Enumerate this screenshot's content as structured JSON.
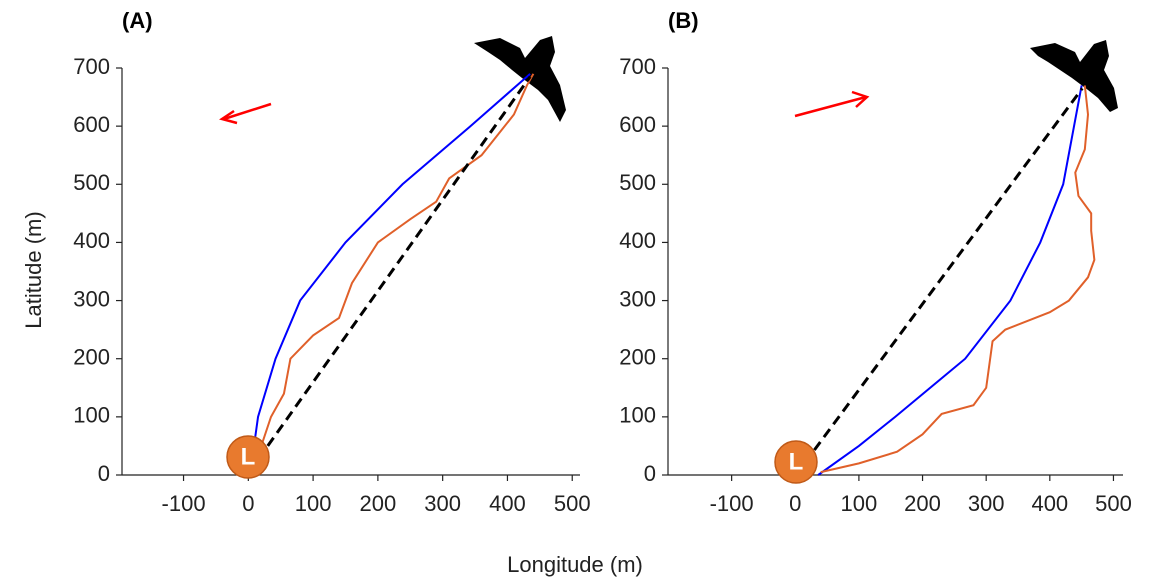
{
  "xlabel": "Longitude (m)",
  "ylabel": "Latitude (m)",
  "chart_data": [
    {
      "type": "line",
      "title": "(A)",
      "start_label": "L",
      "xlim": [
        -195,
        512
      ],
      "ylim": [
        0,
        700
      ],
      "xticks": [
        -100,
        0,
        100,
        200,
        300,
        400,
        500
      ],
      "yticks": [
        0,
        100,
        200,
        300,
        400,
        500,
        600,
        700
      ],
      "series": [
        {
          "color": "#0000ff",
          "linestyle": "solid",
          "x": [
            10,
            15,
            42,
            80,
            150,
            238,
            343,
            435
          ],
          "values": [
            60,
            100,
            200,
            300,
            400,
            500,
            600,
            690
          ]
        },
        {
          "color": "#e0602a",
          "linestyle": "solid",
          "x": [
            20,
            35,
            55,
            65,
            100,
            140,
            160,
            200,
            250,
            290,
            310,
            360,
            410,
            430,
            440
          ],
          "values": [
            50,
            100,
            140,
            200,
            240,
            270,
            330,
            400,
            440,
            470,
            510,
            550,
            620,
            670,
            690
          ]
        },
        {
          "color": "#000000",
          "linestyle": "dashed",
          "x": [
            30,
            435
          ],
          "values": [
            50,
            685
          ]
        }
      ]
    },
    {
      "type": "line",
      "title": "(B)",
      "start_label": "L",
      "xlim": [
        -200,
        515
      ],
      "ylim": [
        0,
        700
      ],
      "xticks": [
        -100,
        0,
        100,
        200,
        300,
        400,
        500
      ],
      "yticks": [
        0,
        100,
        200,
        300,
        400,
        500,
        600,
        700
      ],
      "series": [
        {
          "color": "#0000ff",
          "linestyle": "solid",
          "x": [
            36,
            100,
            157,
            267,
            338,
            385,
            421,
            450
          ],
          "values": [
            0,
            50,
            100,
            200,
            300,
            400,
            500,
            670
          ]
        },
        {
          "color": "#e0602a",
          "linestyle": "solid",
          "x": [
            40,
            100,
            160,
            200,
            230,
            280,
            300,
            310,
            330,
            400,
            430,
            460,
            470,
            465,
            465,
            445,
            440,
            455,
            460,
            455
          ],
          "values": [
            5,
            20,
            40,
            70,
            105,
            120,
            150,
            230,
            250,
            280,
            300,
            340,
            370,
            420,
            450,
            480,
            520,
            560,
            620,
            670
          ]
        },
        {
          "color": "#000000",
          "linestyle": "dashed",
          "x": [
            30,
            451
          ],
          "values": [
            43,
            665
          ]
        }
      ]
    }
  ]
}
